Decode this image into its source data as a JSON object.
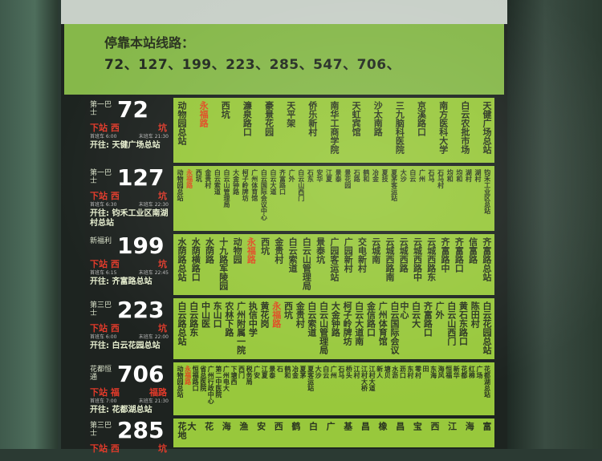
{
  "header": {
    "title": "停靠本站线路：",
    "routes": "72、127、199、223、285、547、706、"
  },
  "routes": [
    {
      "operator": "第一巴士",
      "number": "72",
      "next_label": "下站",
      "next": "西",
      "next2": "坑",
      "first": "首班车 6:00",
      "last": "末班车 21:30",
      "dest": "开往: 天健广场总站",
      "stops": [
        "动物园总站",
        "永福路",
        "西坑",
        "濂泉路口",
        "豪景花园",
        "天平架",
        "侨乐新村",
        "南华工商学院",
        "天虹宾馆",
        "沙太南路",
        "三九脑科医院",
        "京溪路口",
        "南方医科大学",
        "白云农批市场",
        "天健广场总站"
      ]
    },
    {
      "operator": "第一巴士",
      "number": "127",
      "next_label": "下站",
      "next": "西",
      "next2": "坑",
      "first": "首班车 6:30",
      "last": "末班车 22:30",
      "dest": "开往: 钧禾工业区南湖村总站",
      "stops": [
        "动物园总站",
        "永福路",
        "西坑",
        "金贵村",
        "白云索道",
        "白云山管理局",
        "大金钟路",
        "柯子岭牌坊",
        "广州体育馆",
        "白云国际会议中心",
        "白云大道",
        "齐富路口",
        "广外",
        "白云山西门",
        "石东",
        "安华",
        "江夏",
        "景泰",
        "景花园",
        "石路",
        "鹤和",
        "冶金",
        "夏技",
        "夏茅客运站",
        "大沙",
        "白云",
        "广州",
        "石马",
        "石马村",
        "均和",
        "均和",
        "湖村",
        "湖村",
        "钧禾工业区总站"
      ]
    },
    {
      "operator": "新福利",
      "number": "199",
      "next_label": "下站",
      "next": "西",
      "next2": "坑",
      "first": "首班车 6:15",
      "last": "末班车 22:45",
      "dest": "开往: 齐富路总站",
      "stops": [
        "水荫路总站",
        "水荫横路口",
        "水荫路",
        "十九路军陵园",
        "动物园",
        "永福路",
        "西坑",
        "金贵村",
        "白云索道",
        "白云山管理局",
        "景泰坑",
        "广园客运站",
        "广园新村",
        "交电新村",
        "云城南",
        "云城西路南",
        "云城西路",
        "云城西路中",
        "云城西路东",
        "齐富路中",
        "齐富路口",
        "信富路",
        "齐富路总站"
      ]
    },
    {
      "operator": "第三巴士",
      "number": "223",
      "next_label": "下站",
      "next": "西",
      "next2": "坑",
      "first": "首班车 6:00",
      "last": "末班车 22:00",
      "dest": "开往: 白云花园总站",
      "stops": [
        "白云路总站",
        "白云路东",
        "中山医",
        "东山口",
        "农林下路",
        "广州附属一院",
        "执信中学",
        "黄花岗",
        "永福路",
        "西坑",
        "金贵村",
        "白云索道",
        "白云山管理局",
        "大金钟路",
        "柯子岭牌坊",
        "白云大道南",
        "金信路口",
        "广州体育馆",
        "白云国际会议中心",
        "白云大",
        "齐富路口",
        "广外",
        "白云山西门",
        "黄石东路口",
        "陈田村",
        "白云花园总站"
      ]
    },
    {
      "operator": "花都恒通",
      "number": "706",
      "next_label": "下站",
      "next": "福",
      "next2": "福路",
      "first": "首班车 7:00",
      "last": "末班车 21:30",
      "dest": "开往: 花都湖总站",
      "stops": [
        "动物园总站",
        "永福路",
        "恒福路口",
        "省总医院",
        "广州行政中心",
        "第二中医院",
        "广州电大",
        "下塘西",
        "西门",
        "税务局",
        "广安",
        "江夏",
        "景泰",
        "石",
        "鹤和",
        "冶金",
        "夏茅",
        "夏客运站",
        "大沙",
        "白云",
        "广州",
        "石马",
        "桥头",
        "江村",
        "江村大桥",
        "江村大道",
        "新人",
        "塘贝",
        "水沥",
        "沥口",
        "东村",
        "零村",
        "田",
        "东海",
        "海风",
        "恒福",
        "新华",
        "花都",
        "红棉",
        "广场",
        "花都湖总站"
      ]
    },
    {
      "operator": "第三巴士",
      "number": "285",
      "next_label": "下站",
      "next": "西",
      "next2": "坑",
      "first": "",
      "last": "",
      "dest": "",
      "stops": [
        "花地大",
        "花",
        "海",
        "渔",
        "安",
        "西",
        "鹤",
        "白",
        "广",
        "基",
        "昌",
        "橡",
        "昌",
        "宝",
        "西",
        "江",
        "海",
        "富"
      ]
    }
  ]
}
